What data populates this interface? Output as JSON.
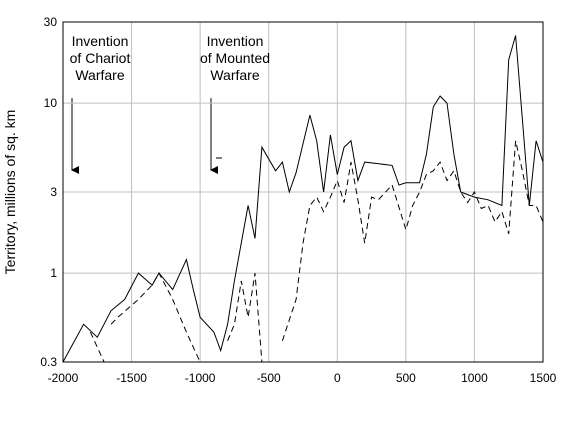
{
  "chart_data": {
    "type": "line",
    "yscale": "log",
    "y_label": "Territory, millions of sq. km",
    "xlim": [
      -2000,
      1500
    ],
    "ylim": [
      0.3,
      30
    ],
    "xticks": [
      -2000,
      -1500,
      -1000,
      -500,
      0,
      500,
      1000,
      1500
    ],
    "yticks": [
      0.3,
      1,
      3,
      10,
      30
    ],
    "grid": true,
    "annotations": [
      {
        "lines": [
          "Invention",
          "of Chariot",
          "Warfare"
        ]
      },
      {
        "lines": [
          "Invention",
          "of Mounted",
          "Warfare"
        ]
      }
    ],
    "series": [
      {
        "color": "#000000",
        "dash": "solid",
        "x": [
          -2000,
          -1850,
          -1750,
          -1650,
          -1550,
          -1450,
          -1350,
          -1300,
          -1200,
          -1100,
          -1050,
          -1000,
          -900,
          -850,
          -800,
          -750,
          -650,
          -600,
          -550,
          -450,
          -400,
          -350,
          -300,
          -200,
          -150,
          -100,
          -50,
          0,
          50,
          100,
          150,
          200,
          400,
          450,
          500,
          600,
          650,
          700,
          750,
          800,
          850,
          900,
          1000,
          1100,
          1200,
          1250,
          1300,
          1350,
          1400,
          1450,
          1500
        ],
        "values": [
          0.3,
          0.5,
          0.42,
          0.6,
          0.7,
          1.0,
          0.85,
          1.0,
          0.8,
          1.2,
          0.8,
          0.55,
          0.45,
          0.35,
          0.5,
          0.9,
          2.5,
          1.6,
          5.5,
          4.0,
          4.5,
          3.0,
          3.9,
          8.5,
          6.0,
          3.0,
          6.5,
          3.8,
          5.5,
          6.0,
          3.5,
          4.5,
          4.3,
          3.3,
          3.4,
          3.4,
          5.0,
          9.5,
          11,
          10,
          5,
          3,
          2.8,
          2.7,
          2.5,
          18,
          25,
          8,
          2.5,
          6,
          4.5
        ]
      },
      {
        "color": "#000000",
        "dash": "dashed",
        "x": [
          -1800,
          -1700,
          null,
          -1650,
          -1600,
          -1450,
          -1350,
          -1300,
          -1200,
          -1100,
          -1000,
          null,
          -800,
          -750,
          -700,
          -650,
          -600,
          -550,
          null,
          -400,
          -300,
          -250,
          -200,
          -150,
          -100,
          -50,
          0,
          50,
          100,
          150,
          200,
          250,
          300,
          400,
          500,
          550,
          600,
          650,
          700,
          750,
          800,
          850,
          900,
          950,
          1000,
          1050,
          1100,
          1150,
          1200,
          1250,
          1300,
          1350,
          1400,
          1450,
          1500
        ],
        "values": [
          0.45,
          0.3,
          null,
          0.5,
          0.55,
          0.7,
          0.85,
          1.0,
          0.7,
          0.45,
          0.3,
          null,
          0.4,
          0.5,
          0.9,
          0.55,
          1.0,
          0.3,
          null,
          0.4,
          0.7,
          1.5,
          2.5,
          2.8,
          2.3,
          2.8,
          3.5,
          2.6,
          4.5,
          2.7,
          1.5,
          2.8,
          2.7,
          3.3,
          1.8,
          2.5,
          3.0,
          3.8,
          4.0,
          4.5,
          3.5,
          4.0,
          3.0,
          2.6,
          3.0,
          2.4,
          2.5,
          2.0,
          2.3,
          1.7,
          6.0,
          4.0,
          2.5,
          2.5,
          2.0
        ]
      }
    ]
  }
}
